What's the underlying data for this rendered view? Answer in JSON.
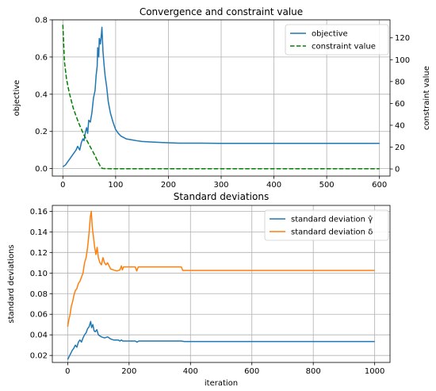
{
  "chart_data": [
    {
      "type": "line",
      "title": "Convergence and constraint value",
      "xlabel": "",
      "ylabel": "objective",
      "ylabel_right": "constraint value",
      "xlim": [
        -20,
        620
      ],
      "ylim": [
        -0.04,
        0.8
      ],
      "ylim_right": [
        -6.5,
        136.5
      ],
      "xticks": [
        0,
        100,
        200,
        300,
        400,
        500,
        600
      ],
      "yticks": [
        0.0,
        0.2,
        0.4,
        0.6,
        0.8
      ],
      "yticks_right": [
        0,
        20,
        40,
        60,
        80,
        100,
        120
      ],
      "grid": true,
      "legend_position": "top-right",
      "series": [
        {
          "name": "objective",
          "axis": "left",
          "color": "#1f77b4",
          "style": "solid",
          "points": [
            [
              0,
              0.01
            ],
            [
              5,
              0.02
            ],
            [
              10,
              0.04
            ],
            [
              15,
              0.06
            ],
            [
              20,
              0.08
            ],
            [
              25,
              0.1
            ],
            [
              28,
              0.12
            ],
            [
              32,
              0.1
            ],
            [
              35,
              0.14
            ],
            [
              38,
              0.16
            ],
            [
              40,
              0.15
            ],
            [
              43,
              0.2
            ],
            [
              45,
              0.22
            ],
            [
              47,
              0.19
            ],
            [
              49,
              0.26
            ],
            [
              52,
              0.25
            ],
            [
              55,
              0.3
            ],
            [
              58,
              0.38
            ],
            [
              61,
              0.42
            ],
            [
              63,
              0.5
            ],
            [
              65,
              0.55
            ],
            [
              66,
              0.65
            ],
            [
              68,
              0.6
            ],
            [
              69,
              0.7
            ],
            [
              71,
              0.67
            ],
            [
              73,
              0.72
            ],
            [
              74,
              0.76
            ],
            [
              76,
              0.63
            ],
            [
              78,
              0.56
            ],
            [
              80,
              0.5
            ],
            [
              83,
              0.44
            ],
            [
              86,
              0.36
            ],
            [
              90,
              0.3
            ],
            [
              95,
              0.25
            ],
            [
              100,
              0.21
            ],
            [
              105,
              0.19
            ],
            [
              110,
              0.175
            ],
            [
              120,
              0.16
            ],
            [
              130,
              0.155
            ],
            [
              140,
              0.15
            ],
            [
              150,
              0.146
            ],
            [
              170,
              0.143
            ],
            [
              190,
              0.14
            ],
            [
              220,
              0.137
            ],
            [
              250,
              0.137
            ],
            [
              300,
              0.136
            ],
            [
              400,
              0.136
            ],
            [
              500,
              0.136
            ],
            [
              600,
              0.136
            ]
          ]
        },
        {
          "name": "constraint value",
          "axis": "right",
          "color": "#008000",
          "style": "dashed",
          "points": [
            [
              0,
              132
            ],
            [
              3,
              98
            ],
            [
              7,
              82
            ],
            [
              12,
              70
            ],
            [
              20,
              55
            ],
            [
              30,
              42
            ],
            [
              40,
              31
            ],
            [
              50,
              22
            ],
            [
              60,
              13
            ],
            [
              67,
              6
            ],
            [
              72,
              1.5
            ],
            [
              75,
              0.5
            ],
            [
              80,
              0.3
            ],
            [
              100,
              0.2
            ],
            [
              200,
              0.2
            ],
            [
              300,
              0.2
            ],
            [
              400,
              0.2
            ],
            [
              500,
              0.2
            ],
            [
              600,
              0.2
            ]
          ]
        }
      ]
    },
    {
      "type": "line",
      "title": "Standard deviations",
      "xlabel": "iteration",
      "ylabel": "standard deviations",
      "xlim": [
        -50,
        1050
      ],
      "ylim": [
        0.0132,
        0.1657
      ],
      "xticks": [
        0,
        200,
        400,
        600,
        800,
        1000
      ],
      "yticks": [
        0.02,
        0.04,
        0.06,
        0.08,
        0.1,
        0.12,
        0.14,
        0.16
      ],
      "grid": true,
      "legend_position": "top-right",
      "series": [
        {
          "name": "standard deviation γ̂",
          "color": "#1f77b4",
          "style": "solid",
          "points": [
            [
              0,
              0.016
            ],
            [
              5,
              0.019
            ],
            [
              10,
              0.022
            ],
            [
              15,
              0.025
            ],
            [
              20,
              0.027
            ],
            [
              25,
              0.03
            ],
            [
              30,
              0.028
            ],
            [
              35,
              0.033
            ],
            [
              40,
              0.035
            ],
            [
              45,
              0.033
            ],
            [
              50,
              0.037
            ],
            [
              55,
              0.04
            ],
            [
              60,
              0.042
            ],
            [
              65,
              0.046
            ],
            [
              70,
              0.048
            ],
            [
              75,
              0.053
            ],
            [
              78,
              0.047
            ],
            [
              82,
              0.05
            ],
            [
              86,
              0.044
            ],
            [
              90,
              0.043
            ],
            [
              95,
              0.045
            ],
            [
              100,
              0.04
            ],
            [
              110,
              0.038
            ],
            [
              120,
              0.037
            ],
            [
              130,
              0.038
            ],
            [
              140,
              0.036
            ],
            [
              150,
              0.035
            ],
            [
              165,
              0.035
            ],
            [
              170,
              0.034
            ],
            [
              175,
              0.035
            ],
            [
              180,
              0.034
            ],
            [
              220,
              0.034
            ],
            [
              226,
              0.033
            ],
            [
              232,
              0.034
            ],
            [
              370,
              0.034
            ],
            [
              380,
              0.0335
            ],
            [
              1000,
              0.0335
            ]
          ]
        },
        {
          "name": "standard deviation δ",
          "color": "#ff7f0e",
          "style": "solid",
          "points": [
            [
              0,
              0.048
            ],
            [
              4,
              0.055
            ],
            [
              8,
              0.06
            ],
            [
              12,
              0.068
            ],
            [
              16,
              0.072
            ],
            [
              20,
              0.078
            ],
            [
              25,
              0.083
            ],
            [
              30,
              0.085
            ],
            [
              35,
              0.09
            ],
            [
              40,
              0.092
            ],
            [
              45,
              0.096
            ],
            [
              50,
              0.1
            ],
            [
              55,
              0.11
            ],
            [
              60,
              0.115
            ],
            [
              65,
              0.125
            ],
            [
              70,
              0.14
            ],
            [
              74,
              0.155
            ],
            [
              77,
              0.16
            ],
            [
              80,
              0.145
            ],
            [
              84,
              0.135
            ],
            [
              88,
              0.125
            ],
            [
              92,
              0.118
            ],
            [
              96,
              0.125
            ],
            [
              100,
              0.115
            ],
            [
              105,
              0.11
            ],
            [
              110,
              0.108
            ],
            [
              115,
              0.115
            ],
            [
              120,
              0.11
            ],
            [
              125,
              0.108
            ],
            [
              130,
              0.11
            ],
            [
              140,
              0.104
            ],
            [
              150,
              0.103
            ],
            [
              160,
              0.102
            ],
            [
              170,
              0.103
            ],
            [
              175,
              0.107
            ],
            [
              178,
              0.103
            ],
            [
              182,
              0.106
            ],
            [
              220,
              0.106
            ],
            [
              225,
              0.102
            ],
            [
              230,
              0.106
            ],
            [
              370,
              0.106
            ],
            [
              375,
              0.1025
            ],
            [
              1000,
              0.1025
            ]
          ]
        }
      ]
    }
  ]
}
